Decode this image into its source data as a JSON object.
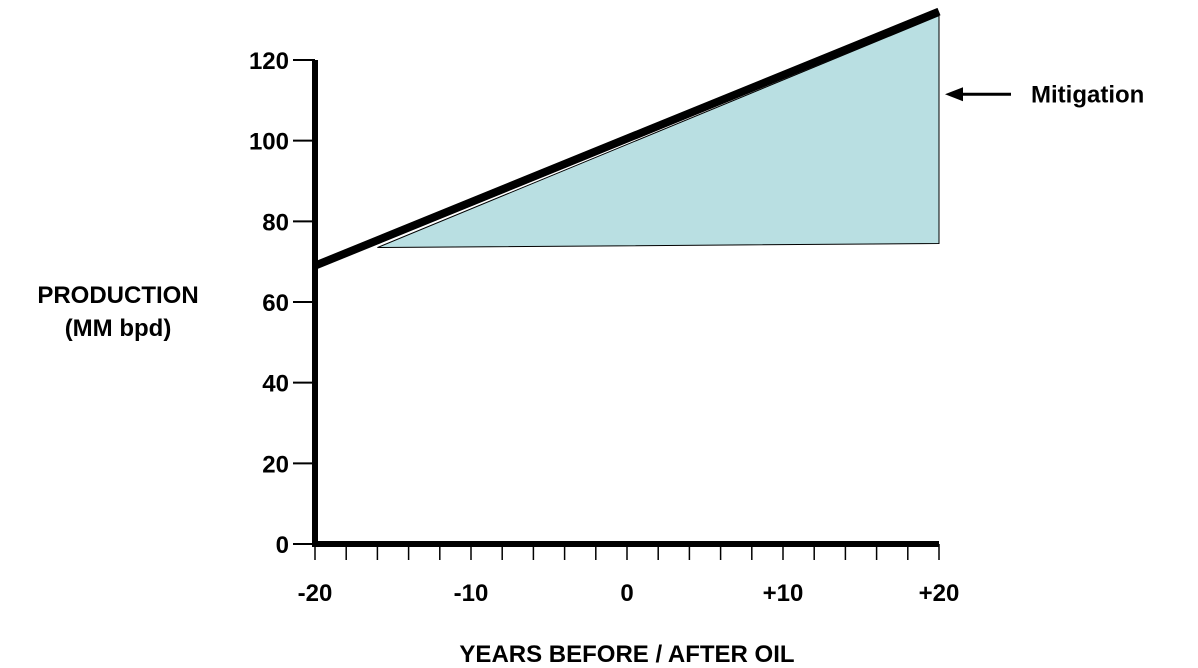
{
  "chart_data": {
    "type": "area",
    "x_axis": {
      "title": "YEARS BEFORE / AFTER OIL",
      "min": -20,
      "max": 20,
      "tick_labels": [
        {
          "value": -20,
          "label": "-20"
        },
        {
          "value": -10,
          "label": "-10"
        },
        {
          "value": 0,
          "label": "0"
        },
        {
          "value": 10,
          "label": "+10"
        },
        {
          "value": 20,
          "label": "+20"
        }
      ],
      "minor_tick_step": 2
    },
    "y_axis": {
      "title_lines": [
        "PRODUCTION",
        "(MM bpd)"
      ],
      "min": 0,
      "max": 120,
      "tick_labels": [
        {
          "value": 0,
          "label": "0"
        },
        {
          "value": 20,
          "label": "20"
        },
        {
          "value": 40,
          "label": "40"
        },
        {
          "value": 60,
          "label": "60"
        },
        {
          "value": 80,
          "label": "80"
        },
        {
          "value": 100,
          "label": "100"
        },
        {
          "value": 120,
          "label": "120"
        }
      ]
    },
    "demand_line": {
      "x": [
        -20,
        20
      ],
      "y": [
        69,
        132
      ]
    },
    "mitigation_area": {
      "fill_color": "#b9dfe2",
      "upper": {
        "x": [
          -16,
          20
        ],
        "y": [
          73.5,
          131
        ]
      },
      "lower": {
        "x": [
          -16,
          20
        ],
        "y": [
          73.5,
          74.5
        ]
      }
    },
    "annotation": {
      "text": "Mitigation",
      "arrow_target": {
        "x": 20,
        "y": 111.5
      }
    },
    "grid": false,
    "legend": "none"
  }
}
